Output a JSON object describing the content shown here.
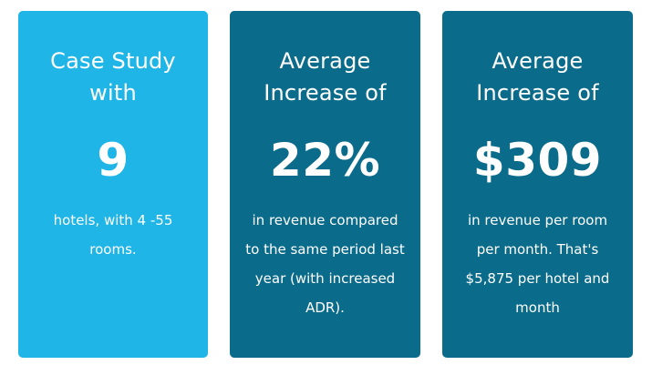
{
  "colors": {
    "card_1_bg": "#1fb5e6",
    "card_2_bg": "#0b6b8a",
    "card_3_bg": "#0b6b8a",
    "text": "#ffffff",
    "page_bg": "#ffffff"
  },
  "cards": [
    {
      "heading_lines": [
        "Case Study",
        "with"
      ],
      "big_value": "9",
      "description_lines": [
        "hotels, with 4 -55",
        "rooms."
      ]
    },
    {
      "heading_lines": [
        "Average",
        "Increase of"
      ],
      "big_value": "22%",
      "description_lines": [
        "in revenue compared",
        "to the same period last",
        "year (with increased",
        "ADR)."
      ]
    },
    {
      "heading_lines": [
        "Average",
        "Increase of"
      ],
      "big_value": "$309",
      "description_lines": [
        "in revenue per room",
        "per month. That's",
        "$5,875 per hotel and",
        "month"
      ]
    }
  ]
}
